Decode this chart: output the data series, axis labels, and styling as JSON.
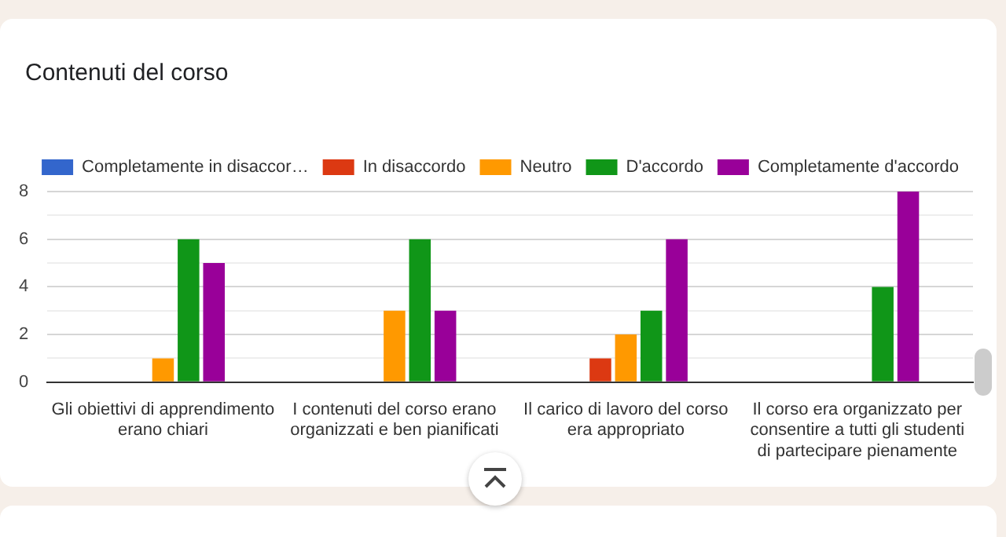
{
  "chart_data": {
    "type": "bar",
    "title": "Contenuti del corso",
    "categories": [
      "Gli obiettivi di apprendimento erano chiari",
      "I contenuti del corso erano organizzati e ben pianificati",
      "Il carico di lavoro del corso era appropriato",
      "Il corso era organizzato per consentire a tutti gli studenti di partecipare pienamente"
    ],
    "series": [
      {
        "name": "Completamente in disaccor…",
        "color": "#3366cc",
        "values": [
          0,
          0,
          0,
          0
        ]
      },
      {
        "name": "In disaccordo",
        "color": "#dc3912",
        "values": [
          0,
          0,
          1,
          0
        ]
      },
      {
        "name": "Neutro",
        "color": "#ff9900",
        "values": [
          1,
          3,
          2,
          0
        ]
      },
      {
        "name": "D'accordo",
        "color": "#109618",
        "values": [
          6,
          6,
          3,
          4
        ]
      },
      {
        "name": "Completamente d'accordo",
        "color": "#990099",
        "values": [
          5,
          3,
          6,
          8
        ]
      }
    ],
    "ylim": [
      0,
      8
    ],
    "yticks": [
      0,
      {
        "value": 1,
        "label": null
      },
      2,
      {
        "value": 3,
        "label": null
      },
      4,
      {
        "value": 5,
        "label": null
      },
      6,
      {
        "value": 7,
        "label": null
      },
      8
    ],
    "grid": "y",
    "legend": "top"
  }
}
